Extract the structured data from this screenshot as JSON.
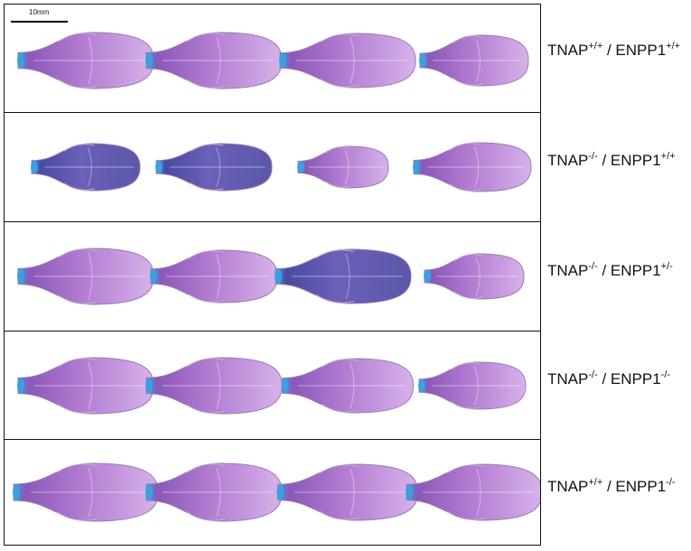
{
  "scale_bar": {
    "label": "10mm"
  },
  "rows": [
    {
      "genotype": {
        "a": "TNAP",
        "a_sup": "+/+",
        "sep": " / ",
        "b": "ENPP1",
        "b_sup": "+/+"
      }
    },
    {
      "genotype": {
        "a": "TNAP",
        "a_sup": "-/-",
        "sep": " / ",
        "b": "ENPP1",
        "b_sup": "+/+"
      }
    },
    {
      "genotype": {
        "a": "TNAP",
        "a_sup": "-/-",
        "sep": " / ",
        "b": "ENPP1",
        "b_sup": "+/-"
      }
    },
    {
      "genotype": {
        "a": "TNAP",
        "a_sup": "-/-",
        "sep": " / ",
        "b": "ENPP1",
        "b_sup": "-/-"
      }
    },
    {
      "genotype": {
        "a": "TNAP",
        "a_sup": "+/+",
        "sep": " / ",
        "b": "ENPP1",
        "b_sup": "-/-"
      }
    }
  ],
  "colors": {
    "purple": "#b07ad0",
    "light_purple": "#d6b2ea",
    "dark_blue": "#4a4aa0",
    "cyan_tip": "#3aa0e0",
    "border": "#111111"
  }
}
